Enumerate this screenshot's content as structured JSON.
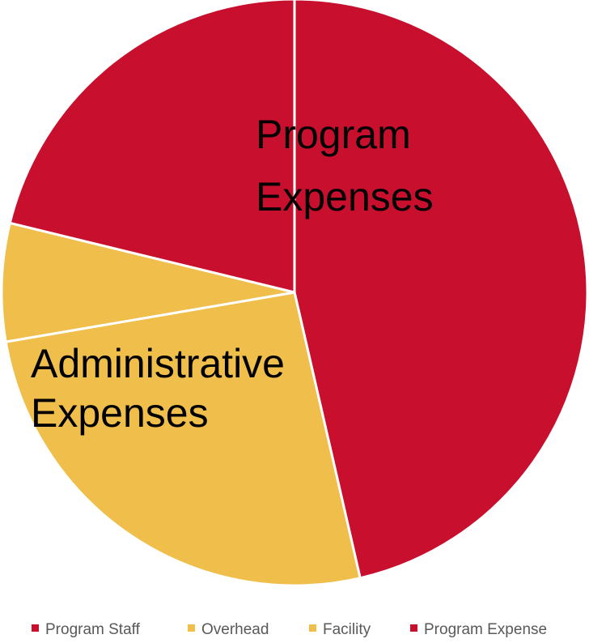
{
  "chart_data": {
    "type": "pie",
    "start_angle_deg": 0,
    "direction": "clockwise",
    "slices": [
      {
        "name": "Program Staff",
        "value": 46.4,
        "color": "#C8102E"
      },
      {
        "name": "Overhead",
        "value": 25.9,
        "color": "#F0BE4A"
      },
      {
        "name": "Facility",
        "value": 6.5,
        "color": "#F0BE4A"
      },
      {
        "name": "Program Expense",
        "value": 21.2,
        "color": "#C8102E"
      }
    ],
    "annotations": [
      {
        "lines": [
          "Program",
          "Expenses"
        ]
      },
      {
        "lines": [
          "Administrative",
          "Expenses"
        ]
      }
    ],
    "legend": {
      "position": "bottom",
      "entries": [
        "Program Staff",
        "Overhead",
        "Facility",
        "Program Expense"
      ]
    }
  }
}
